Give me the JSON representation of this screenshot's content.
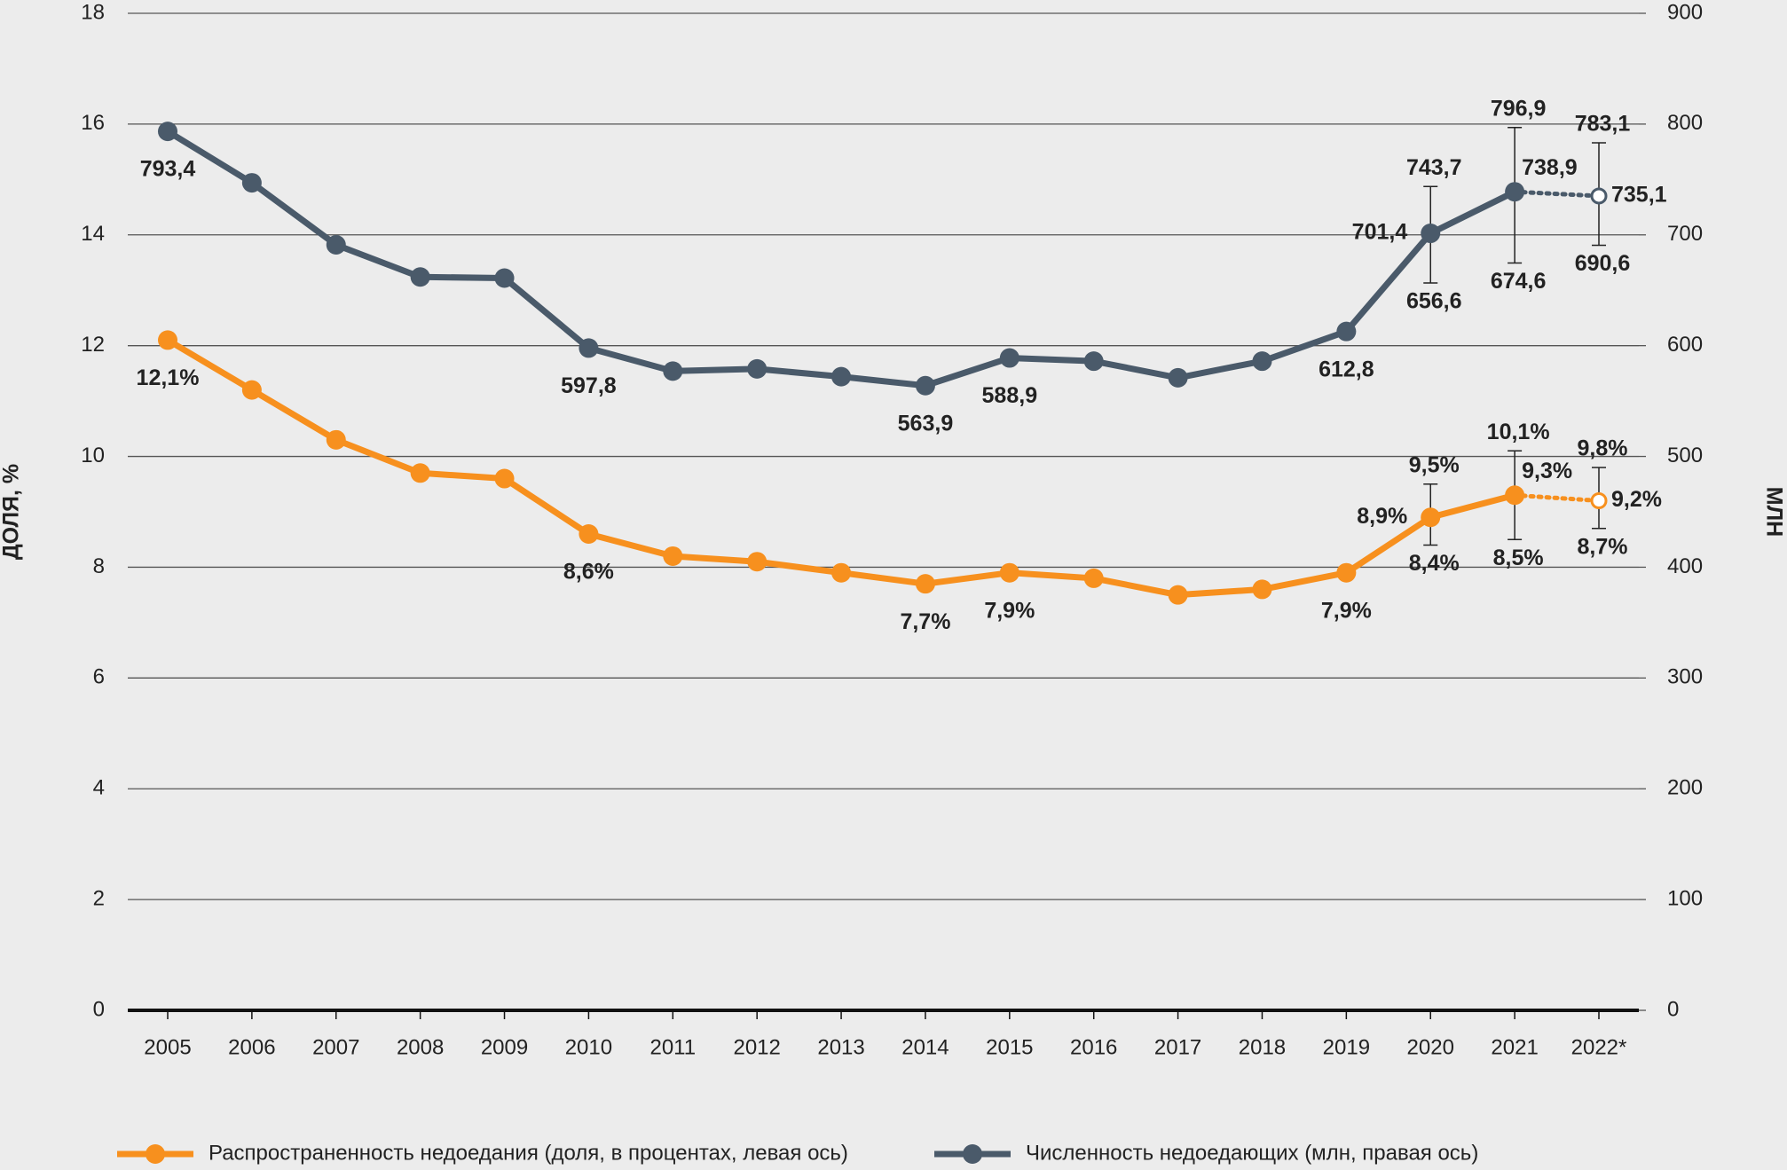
{
  "chart_data": {
    "type": "line",
    "y_label": "ДОЛЯ, %",
    "y2_label": "МЛН",
    "categories": [
      "2005",
      "2006",
      "2007",
      "2008",
      "2009",
      "2010",
      "2011",
      "2012",
      "2013",
      "2014",
      "2015",
      "2016",
      "2017",
      "2018",
      "2019",
      "2020",
      "2021",
      "2022*"
    ],
    "ylim": [
      0,
      18
    ],
    "yticks": [
      0,
      2,
      4,
      6,
      8,
      10,
      12,
      14,
      16,
      18
    ],
    "y2lim": [
      0,
      900
    ],
    "y2ticks": [
      0,
      100,
      200,
      300,
      400,
      500,
      600,
      700,
      800,
      900
    ],
    "grid": true,
    "legend": "bottom",
    "dashed_last_segment": true,
    "series": [
      {
        "name": "Распространенность недоедания (доля, в процентах, левая ось)",
        "color": "#f7901e",
        "values": [
          12.1,
          11.2,
          10.3,
          9.7,
          9.6,
          8.6,
          8.2,
          8.1,
          7.9,
          7.7,
          7.9,
          7.8,
          7.5,
          7.6,
          7.9,
          8.9,
          9.3,
          9.2
        ],
        "value_labels": [
          "12,1%",
          null,
          null,
          null,
          null,
          "8,6%",
          null,
          null,
          null,
          "7,7%",
          "7,9%",
          null,
          null,
          null,
          "7,9%",
          "8,9%",
          "9,3%",
          "9,2%"
        ],
        "lower": [
          null,
          null,
          null,
          null,
          null,
          null,
          null,
          null,
          null,
          null,
          null,
          null,
          null,
          null,
          null,
          8.4,
          8.5,
          8.7
        ],
        "upper": [
          null,
          null,
          null,
          null,
          null,
          null,
          null,
          null,
          null,
          null,
          null,
          null,
          null,
          null,
          null,
          9.5,
          10.1,
          9.8
        ],
        "lower_labels": [
          null,
          null,
          null,
          null,
          null,
          null,
          null,
          null,
          null,
          null,
          null,
          null,
          null,
          null,
          null,
          "8,4%",
          "8,5%",
          "8,7%"
        ],
        "upper_labels": [
          null,
          null,
          null,
          null,
          null,
          null,
          null,
          null,
          null,
          null,
          null,
          null,
          null,
          null,
          null,
          "9,5%",
          "10,1%",
          "9,8%"
        ]
      },
      {
        "name": "Численность недоедающих (млн, правая ось)",
        "color": "#4a5a6a",
        "axis": "y2",
        "values": [
          793.4,
          747,
          691,
          662,
          661,
          597.8,
          577,
          579,
          572,
          563.9,
          588.9,
          586,
          571,
          586,
          612.8,
          701.4,
          738.9,
          735.1
        ],
        "value_labels": [
          "793,4",
          null,
          null,
          null,
          null,
          "597,8",
          null,
          null,
          null,
          "563,9",
          "588,9",
          null,
          null,
          null,
          "612,8",
          "701,4",
          "738,9",
          "735,1"
        ],
        "lower": [
          null,
          null,
          null,
          null,
          null,
          null,
          null,
          null,
          null,
          null,
          null,
          null,
          null,
          null,
          null,
          656.6,
          674.6,
          690.6
        ],
        "upper": [
          null,
          null,
          null,
          null,
          null,
          null,
          null,
          null,
          null,
          null,
          null,
          null,
          null,
          null,
          null,
          743.7,
          796.9,
          783.1
        ],
        "lower_labels": [
          null,
          null,
          null,
          null,
          null,
          null,
          null,
          null,
          null,
          null,
          null,
          null,
          null,
          null,
          null,
          "656,6",
          "674,6",
          "690,6"
        ],
        "upper_labels": [
          null,
          null,
          null,
          null,
          null,
          null,
          null,
          null,
          null,
          null,
          null,
          null,
          null,
          null,
          null,
          "743,7",
          "796,9",
          "783,1"
        ]
      }
    ]
  }
}
